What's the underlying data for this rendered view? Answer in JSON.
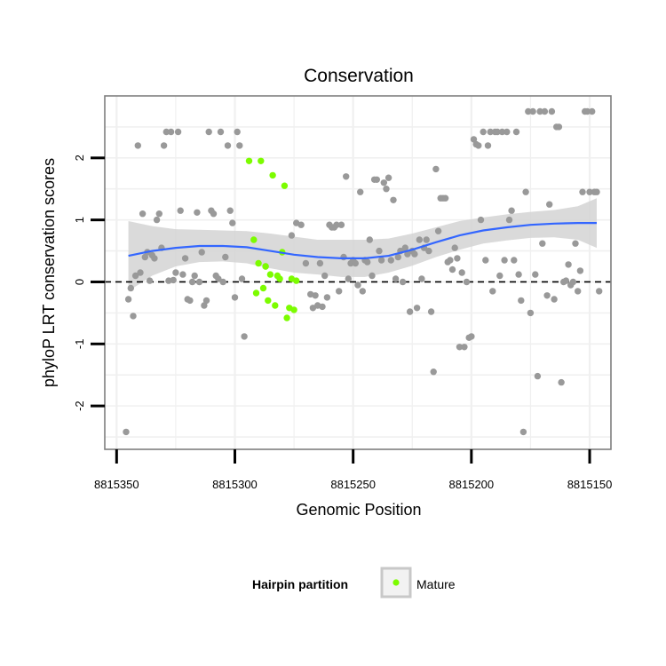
{
  "chart_data": {
    "type": "scatter",
    "title": "Conservation",
    "xlabel": "Genomic Position",
    "ylabel": "phyloP LRT conservation scores",
    "x_reversed": true,
    "xlim": [
      8815355,
      8815141
    ],
    "ylim": [
      -2.7,
      3.0
    ],
    "x_ticks": [
      "8815350",
      "8815300",
      "8815250",
      "8815200",
      "8815150"
    ],
    "x_tick_values": [
      8815350,
      8815300,
      8815250,
      8815200,
      8815150
    ],
    "y_ticks": [
      "-2",
      "-1",
      "0",
      "1",
      "2"
    ],
    "y_tick_values": [
      -2,
      -1,
      0,
      1,
      2
    ],
    "grid": true,
    "reference_line": {
      "y": 0,
      "style": "dashed",
      "color": "#000000"
    },
    "legend": {
      "title": "Hairpin partition",
      "placement": "bottom",
      "entries": [
        {
          "label": "Mature",
          "color": "#7CFC00"
        }
      ]
    },
    "colors": {
      "other": "#999999",
      "mature": "#7CFC00",
      "smooth": "#3366FF",
      "band": "#D3D3D3",
      "grid": "#F0F0F0",
      "frame": "#7F7F7F"
    },
    "series": [
      {
        "points": [
          [
            8815346,
            -2.42
          ],
          [
            8815345,
            -0.28
          ],
          [
            8815344,
            -0.1
          ],
          [
            8815343,
            -0.55
          ],
          [
            8815342,
            0.1
          ],
          [
            8815341,
            2.2
          ],
          [
            8815340,
            0.15
          ],
          [
            8815339,
            1.1
          ],
          [
            8815338,
            0.4
          ],
          [
            8815337,
            0.48
          ],
          [
            8815336,
            0.02
          ],
          [
            8815335,
            0.43
          ],
          [
            8815334,
            0.38
          ],
          [
            8815333,
            1.0
          ],
          [
            8815332,
            1.1
          ],
          [
            8815331,
            0.55
          ],
          [
            8815330,
            2.2
          ],
          [
            8815329,
            2.42
          ],
          [
            8815328,
            0.02
          ],
          [
            8815327,
            2.42
          ],
          [
            8815326,
            0.03
          ],
          [
            8815325,
            0.15
          ],
          [
            8815324,
            2.42
          ],
          [
            8815323,
            1.15
          ],
          [
            8815322,
            0.12
          ],
          [
            8815321,
            0.38
          ],
          [
            8815320,
            -0.28
          ],
          [
            8815319,
            -0.3
          ],
          [
            8815318,
            0.0
          ],
          [
            8815317,
            0.1
          ],
          [
            8815316,
            1.12
          ],
          [
            8815315,
            0.0
          ],
          [
            8815314,
            0.48
          ],
          [
            8815313,
            -0.38
          ],
          [
            8815312,
            -0.3
          ],
          [
            8815311,
            2.42
          ],
          [
            8815310,
            1.15
          ],
          [
            8815309,
            1.1
          ],
          [
            8815308,
            0.1
          ],
          [
            8815307,
            0.05
          ],
          [
            8815306,
            2.42
          ],
          [
            8815305,
            0.0
          ],
          [
            8815304,
            0.4
          ],
          [
            8815303,
            2.2
          ],
          [
            8815302,
            1.15
          ],
          [
            8815301,
            0.95
          ],
          [
            8815300,
            -0.25
          ],
          [
            8815299,
            2.42
          ],
          [
            8815298,
            2.2
          ],
          [
            8815297,
            0.05
          ],
          [
            8815296,
            -0.88
          ],
          [
            8815287,
            0.25
          ],
          [
            8815276,
            0.75
          ],
          [
            8815274,
            0.95
          ],
          [
            8815272,
            0.92
          ],
          [
            8815270,
            0.3
          ],
          [
            8815268,
            -0.2
          ],
          [
            8815267,
            -0.42
          ],
          [
            8815266,
            -0.22
          ],
          [
            8815265,
            -0.38
          ],
          [
            8815264,
            0.3
          ],
          [
            8815263,
            -0.4
          ],
          [
            8815262,
            0.1
          ],
          [
            8815261,
            -0.25
          ],
          [
            8815260,
            0.92
          ],
          [
            8815259,
            0.88
          ],
          [
            8815258,
            0.88
          ],
          [
            8815257,
            0.92
          ],
          [
            8815256,
            -0.15
          ],
          [
            8815255,
            0.92
          ],
          [
            8815254,
            0.4
          ],
          [
            8815253,
            1.7
          ],
          [
            8815252,
            0.05
          ],
          [
            8815251,
            0.3
          ],
          [
            8815250,
            0.35
          ],
          [
            8815249,
            0.3
          ],
          [
            8815248,
            -0.05
          ],
          [
            8815247,
            1.45
          ],
          [
            8815246,
            -0.15
          ],
          [
            8815245,
            0.35
          ],
          [
            8815244,
            0.32
          ],
          [
            8815243,
            0.68
          ],
          [
            8815242,
            0.1
          ],
          [
            8815241,
            1.65
          ],
          [
            8815240,
            1.65
          ],
          [
            8815239,
            0.5
          ],
          [
            8815238,
            0.35
          ],
          [
            8815237,
            1.6
          ],
          [
            8815236,
            1.5
          ],
          [
            8815235,
            1.68
          ],
          [
            8815234,
            0.35
          ],
          [
            8815233,
            1.32
          ],
          [
            8815232,
            0.05
          ],
          [
            8815231,
            0.4
          ],
          [
            8815230,
            0.5
          ],
          [
            8815229,
            0.0
          ],
          [
            8815228,
            0.55
          ],
          [
            8815227,
            0.45
          ],
          [
            8815226,
            -0.48
          ],
          [
            8815225,
            0.5
          ],
          [
            8815224,
            0.45
          ],
          [
            8815223,
            -0.42
          ],
          [
            8815222,
            0.68
          ],
          [
            8815221,
            0.05
          ],
          [
            8815220,
            0.55
          ],
          [
            8815219,
            0.68
          ],
          [
            8815218,
            0.5
          ],
          [
            8815217,
            -0.48
          ],
          [
            8815216,
            -1.45
          ],
          [
            8815215,
            1.82
          ],
          [
            8815214,
            0.82
          ],
          [
            8815213,
            1.35
          ],
          [
            8815212,
            1.35
          ],
          [
            8815211,
            1.35
          ],
          [
            8815210,
            0.32
          ],
          [
            8815209,
            0.35
          ],
          [
            8815208,
            0.2
          ],
          [
            8815207,
            0.55
          ],
          [
            8815206,
            0.38
          ],
          [
            8815205,
            -1.05
          ],
          [
            8815204,
            0.15
          ],
          [
            8815203,
            -1.05
          ],
          [
            8815202,
            0.0
          ],
          [
            8815201,
            -0.9
          ],
          [
            8815200,
            -0.88
          ],
          [
            8815199,
            2.3
          ],
          [
            8815198,
            2.22
          ],
          [
            8815197,
            2.2
          ],
          [
            8815196,
            1.0
          ],
          [
            8815195,
            2.42
          ],
          [
            8815194,
            0.35
          ],
          [
            8815193,
            2.2
          ],
          [
            8815192,
            2.42
          ],
          [
            8815191,
            -0.15
          ],
          [
            8815190,
            2.42
          ],
          [
            8815189,
            2.42
          ],
          [
            8815188,
            0.1
          ],
          [
            8815187,
            2.42
          ],
          [
            8815186,
            0.35
          ],
          [
            8815185,
            2.42
          ],
          [
            8815184,
            1.0
          ],
          [
            8815183,
            1.15
          ],
          [
            8815182,
            0.35
          ],
          [
            8815181,
            2.42
          ],
          [
            8815180,
            0.12
          ],
          [
            8815179,
            -0.3
          ],
          [
            8815178,
            -2.42
          ],
          [
            8815177,
            1.45
          ],
          [
            8815176,
            2.75
          ],
          [
            8815175,
            -0.5
          ],
          [
            8815174,
            2.75
          ],
          [
            8815173,
            0.12
          ],
          [
            8815172,
            -1.52
          ],
          [
            8815171,
            2.75
          ],
          [
            8815170,
            0.62
          ],
          [
            8815169,
            2.75
          ],
          [
            8815168,
            -0.22
          ],
          [
            8815167,
            1.25
          ],
          [
            8815166,
            2.75
          ],
          [
            8815165,
            -0.28
          ],
          [
            8815164,
            2.5
          ],
          [
            8815163,
            2.5
          ],
          [
            8815162,
            -1.62
          ],
          [
            8815161,
            0.0
          ],
          [
            8815160,
            0.02
          ],
          [
            8815159,
            0.28
          ],
          [
            8815158,
            -0.05
          ],
          [
            8815157,
            0.0
          ],
          [
            8815156,
            0.62
          ],
          [
            8815155,
            -0.15
          ],
          [
            8815154,
            0.18
          ],
          [
            8815153,
            1.45
          ],
          [
            8815152,
            2.75
          ],
          [
            8815151,
            2.75
          ],
          [
            8815150,
            1.45
          ],
          [
            8815149,
            2.75
          ],
          [
            8815148,
            1.45
          ],
          [
            8815147,
            1.45
          ],
          [
            8815146,
            -0.15
          ]
        ]
      },
      {
        "name": "Mature",
        "points": [
          [
            8815294,
            1.95
          ],
          [
            8815292,
            0.68
          ],
          [
            8815291,
            -0.18
          ],
          [
            8815290,
            0.3
          ],
          [
            8815289,
            1.95
          ],
          [
            8815288,
            -0.1
          ],
          [
            8815287,
            0.25
          ],
          [
            8815286,
            -0.3
          ],
          [
            8815285,
            0.12
          ],
          [
            8815284,
            1.72
          ],
          [
            8815283,
            -0.38
          ],
          [
            8815282,
            0.1
          ],
          [
            8815281,
            0.05
          ],
          [
            8815280,
            0.48
          ],
          [
            8815279,
            1.55
          ],
          [
            8815278,
            -0.58
          ],
          [
            8815277,
            -0.42
          ],
          [
            8815276,
            0.05
          ],
          [
            8815275,
            -0.45
          ],
          [
            8815274,
            0.02
          ]
        ]
      }
    ],
    "smooth": {
      "method": "loess",
      "x": [
        8815345,
        8815335,
        8815325,
        8815315,
        8815305,
        8815295,
        8815285,
        8815275,
        8815265,
        8815255,
        8815245,
        8815235,
        8815225,
        8815215,
        8815205,
        8815195,
        8815185,
        8815175,
        8815165,
        8815155,
        8815147
      ],
      "y": [
        0.42,
        0.5,
        0.55,
        0.58,
        0.58,
        0.56,
        0.5,
        0.44,
        0.4,
        0.38,
        0.38,
        0.42,
        0.52,
        0.64,
        0.75,
        0.83,
        0.88,
        0.92,
        0.94,
        0.95,
        0.95
      ],
      "lower": [
        -0.15,
        0.1,
        0.25,
        0.32,
        0.33,
        0.3,
        0.22,
        0.15,
        0.12,
        0.08,
        0.08,
        0.15,
        0.26,
        0.4,
        0.52,
        0.62,
        0.67,
        0.71,
        0.72,
        0.68,
        0.55
      ],
      "upper": [
        0.98,
        0.9,
        0.85,
        0.84,
        0.83,
        0.82,
        0.78,
        0.73,
        0.68,
        0.68,
        0.68,
        0.7,
        0.78,
        0.88,
        0.98,
        1.04,
        1.09,
        1.13,
        1.16,
        1.22,
        1.35
      ]
    }
  }
}
